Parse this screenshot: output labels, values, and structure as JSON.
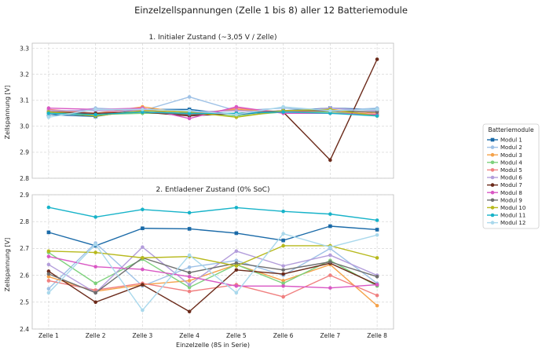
{
  "figure_title": "Einzelzellspannungen (Zelle 1 bis 8) aller 12 Batteriemodule",
  "shared_xlabel": "Einzelzelle (8S in Serie)",
  "legend_title": "Batteriemodule",
  "legend_labels": [
    "Modul 1",
    "Modul 2",
    "Modul 3",
    "Modul 4",
    "Modul 5",
    "Modul 6",
    "Modul 7",
    "Modul 8",
    "Modul 9",
    "Modul 10",
    "Modul 11",
    "Modul 12"
  ],
  "chart_data": [
    {
      "type": "line",
      "title": "1. Initialer Zustand (~3,05 V / Zelle)",
      "xlabel": "",
      "ylabel": "Zellspannung [V]",
      "categories": [
        "Zelle 1",
        "Zelle 2",
        "Zelle 3",
        "Zelle 4",
        "Zelle 5",
        "Zelle 6",
        "Zelle 7",
        "Zelle 8"
      ],
      "ylim": [
        2.8,
        3.32
      ],
      "yticks": [
        2.8,
        2.9,
        3.0,
        3.1,
        3.2,
        3.3
      ],
      "ytick_labels": [
        "2.8",
        "2.9",
        "3.0",
        "3.1",
        "3.2",
        "3.3"
      ],
      "grid": true,
      "legend_position": "right, outside",
      "series": [
        {
          "name": "Modul 1",
          "color": "#1a6aa8",
          "marker": "square",
          "values": [
            3.045,
            3.038,
            3.065,
            3.065,
            3.045,
            3.06,
            3.07,
            3.065
          ]
        },
        {
          "name": "Modul 2",
          "color": "#9ec1e6",
          "marker": "circle",
          "values": [
            3.045,
            3.07,
            3.06,
            3.113,
            3.06,
            3.07,
            3.06,
            3.07
          ]
        },
        {
          "name": "Modul 3",
          "color": "#f5a24a",
          "marker": "circle",
          "values": [
            3.06,
            3.05,
            3.075,
            3.05,
            3.065,
            3.055,
            3.065,
            3.05
          ]
        },
        {
          "name": "Modul 4",
          "color": "#7dd17c",
          "marker": "circle",
          "values": [
            3.05,
            3.045,
            3.05,
            3.05,
            3.04,
            3.055,
            3.055,
            3.045
          ]
        },
        {
          "name": "Modul 5",
          "color": "#f08080",
          "marker": "circle",
          "values": [
            3.065,
            3.05,
            3.065,
            3.04,
            3.07,
            3.055,
            3.06,
            3.045
          ]
        },
        {
          "name": "Modul 6",
          "color": "#b39ddb",
          "marker": "circle",
          "values": [
            3.06,
            3.06,
            3.06,
            3.055,
            3.06,
            3.055,
            3.07,
            3.06
          ]
        },
        {
          "name": "Modul 7",
          "color": "#6b2a1a",
          "marker": "circle",
          "values": [
            3.055,
            3.05,
            3.055,
            3.04,
            3.05,
            3.055,
            2.87,
            3.258
          ]
        },
        {
          "name": "Modul 8",
          "color": "#d957c4",
          "marker": "circle",
          "values": [
            3.07,
            3.065,
            3.07,
            3.03,
            3.075,
            3.05,
            3.05,
            3.045
          ]
        },
        {
          "name": "Modul 9",
          "color": "#6f6f6f",
          "marker": "circle",
          "values": [
            3.055,
            3.045,
            3.055,
            3.045,
            3.05,
            3.06,
            3.06,
            3.055
          ]
        },
        {
          "name": "Modul 10",
          "color": "#b7b91c",
          "marker": "circle",
          "values": [
            3.055,
            3.04,
            3.06,
            3.055,
            3.035,
            3.06,
            3.065,
            3.04
          ]
        },
        {
          "name": "Modul 11",
          "color": "#17b3c9",
          "marker": "circle",
          "values": [
            3.05,
            3.045,
            3.055,
            3.05,
            3.05,
            3.055,
            3.05,
            3.04
          ]
        },
        {
          "name": "Modul 12",
          "color": "#a9d8ec",
          "marker": "circle",
          "values": [
            3.035,
            3.065,
            3.065,
            3.06,
            3.045,
            3.075,
            3.06,
            3.065
          ]
        }
      ]
    },
    {
      "type": "line",
      "title": "2. Entladener Zustand (0% SoC)",
      "xlabel": "Einzelzelle (8S in Serie)",
      "ylabel": "Zellspannung [V]",
      "categories": [
        "Zelle 1",
        "Zelle 2",
        "Zelle 3",
        "Zelle 4",
        "Zelle 5",
        "Zelle 6",
        "Zelle 7",
        "Zelle 8"
      ],
      "ylim": [
        2.4,
        2.9
      ],
      "yticks": [
        2.4,
        2.5,
        2.6,
        2.7,
        2.8,
        2.9
      ],
      "ytick_labels": [
        "2.4",
        "2.5",
        "2.6",
        "2.7",
        "2.8",
        "2.9"
      ],
      "grid": true,
      "legend_position": "right, outside",
      "series": [
        {
          "name": "Modul 1",
          "color": "#1a6aa8",
          "marker": "square",
          "values": [
            2.76,
            2.71,
            2.775,
            2.773,
            2.757,
            2.73,
            2.783,
            2.77
          ]
        },
        {
          "name": "Modul 2",
          "color": "#9ec1e6",
          "marker": "circle",
          "values": [
            2.55,
            2.72,
            2.56,
            2.63,
            2.655,
            2.6,
            2.7,
            2.57
          ]
        },
        {
          "name": "Modul 3",
          "color": "#f5a24a",
          "marker": "circle",
          "values": [
            2.595,
            2.54,
            2.565,
            2.58,
            2.64,
            2.58,
            2.64,
            2.487
          ]
        },
        {
          "name": "Modul 4",
          "color": "#7dd17c",
          "marker": "circle",
          "values": [
            2.685,
            2.57,
            2.66,
            2.555,
            2.64,
            2.57,
            2.655,
            2.56
          ]
        },
        {
          "name": "Modul 5",
          "color": "#f08080",
          "marker": "circle",
          "values": [
            2.58,
            2.545,
            2.57,
            2.54,
            2.565,
            2.52,
            2.6,
            2.525
          ]
        },
        {
          "name": "Modul 6",
          "color": "#b39ddb",
          "marker": "circle",
          "values": [
            2.64,
            2.535,
            2.705,
            2.565,
            2.69,
            2.635,
            2.675,
            2.6
          ]
        },
        {
          "name": "Modul 7",
          "color": "#6b2a1a",
          "marker": "circle",
          "values": [
            2.615,
            2.5,
            2.565,
            2.465,
            2.62,
            2.605,
            2.645,
            2.565
          ]
        },
        {
          "name": "Modul 8",
          "color": "#d957c4",
          "marker": "circle",
          "values": [
            2.67,
            2.632,
            2.622,
            2.595,
            2.56,
            2.56,
            2.553,
            2.565
          ]
        },
        {
          "name": "Modul 9",
          "color": "#6f6f6f",
          "marker": "circle",
          "values": [
            2.605,
            2.535,
            2.665,
            2.61,
            2.645,
            2.62,
            2.65,
            2.595
          ]
        },
        {
          "name": "Modul 10",
          "color": "#b7b91c",
          "marker": "circle",
          "values": [
            2.69,
            2.685,
            2.665,
            2.67,
            2.635,
            2.71,
            2.71,
            2.665
          ]
        },
        {
          "name": "Modul 11",
          "color": "#17b3c9",
          "marker": "circle",
          "values": [
            2.853,
            2.817,
            2.845,
            2.833,
            2.852,
            2.838,
            2.828,
            2.805
          ]
        },
        {
          "name": "Modul 12",
          "color": "#a9d8ec",
          "marker": "circle",
          "values": [
            2.535,
            2.715,
            2.47,
            2.675,
            2.535,
            2.755,
            2.705,
            2.75
          ]
        }
      ]
    }
  ]
}
